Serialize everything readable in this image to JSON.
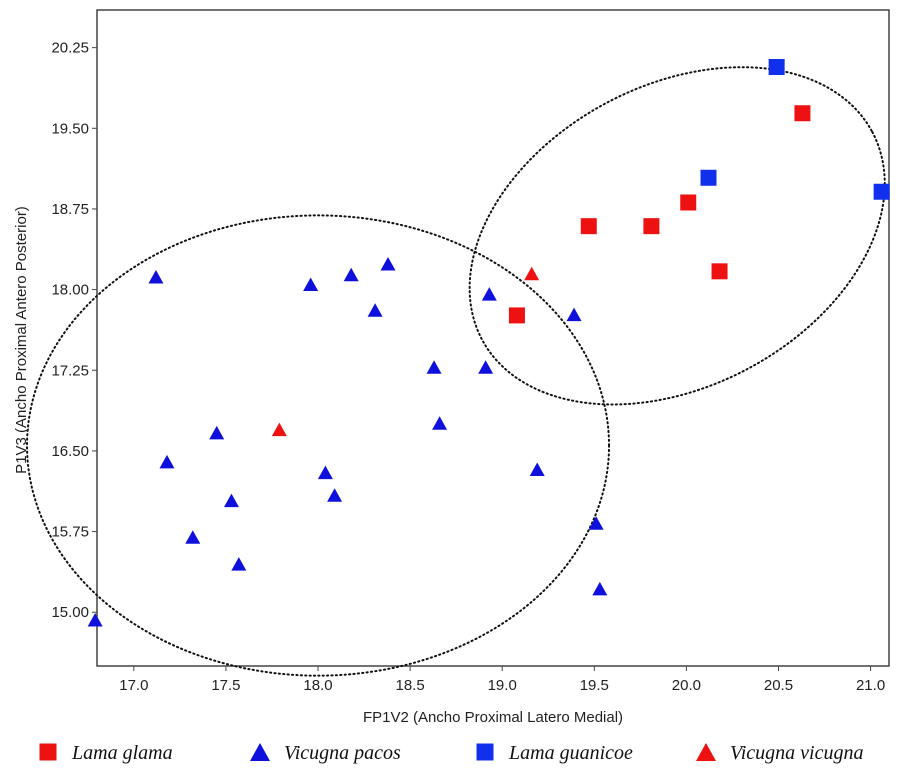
{
  "chart_data": {
    "type": "scatter",
    "xlabel": "FP1V2 (Ancho Proximal Latero Medial)",
    "ylabel": "P1V3 (Ancho Proximal Antero Posterior)",
    "xlim": [
      16.8,
      21.1
    ],
    "ylim": [
      14.5,
      20.6
    ],
    "x_ticks": [
      "17.0",
      "17.5",
      "18.0",
      "18.5",
      "19.0",
      "19.5",
      "20.0",
      "20.5",
      "21.0"
    ],
    "y_ticks": [
      "15.00",
      "15.75",
      "16.50",
      "17.25",
      "18.00",
      "18.75",
      "19.50",
      "20.25"
    ],
    "grid": false,
    "legend_position": "bottom",
    "series": [
      {
        "name": "Lama glama",
        "marker": "square",
        "color": "#ee1111",
        "points": [
          {
            "x": 20.63,
            "y": 19.64
          },
          {
            "x": 19.47,
            "y": 18.59
          },
          {
            "x": 19.81,
            "y": 18.59
          },
          {
            "x": 20.01,
            "y": 18.81
          },
          {
            "x": 20.18,
            "y": 18.17
          },
          {
            "x": 19.08,
            "y": 17.76
          }
        ]
      },
      {
        "name": "Vicugna pacos",
        "marker": "triangle",
        "color": "#1010dd",
        "points": [
          {
            "x": 17.12,
            "y": 18.12
          },
          {
            "x": 17.96,
            "y": 18.05
          },
          {
            "x": 18.18,
            "y": 18.14
          },
          {
            "x": 18.38,
            "y": 18.24
          },
          {
            "x": 18.31,
            "y": 17.81
          },
          {
            "x": 18.93,
            "y": 17.96
          },
          {
            "x": 19.39,
            "y": 17.77
          },
          {
            "x": 18.63,
            "y": 17.28
          },
          {
            "x": 18.91,
            "y": 17.28
          },
          {
            "x": 18.66,
            "y": 16.76
          },
          {
            "x": 17.45,
            "y": 16.67
          },
          {
            "x": 17.18,
            "y": 16.4
          },
          {
            "x": 18.04,
            "y": 16.3
          },
          {
            "x": 18.09,
            "y": 16.09
          },
          {
            "x": 17.53,
            "y": 16.04
          },
          {
            "x": 19.19,
            "y": 16.33
          },
          {
            "x": 19.51,
            "y": 15.83
          },
          {
            "x": 17.32,
            "y": 15.7
          },
          {
            "x": 17.57,
            "y": 15.45
          },
          {
            "x": 19.53,
            "y": 15.22
          },
          {
            "x": 16.79,
            "y": 14.93
          }
        ]
      },
      {
        "name": "Lama guanicoe",
        "marker": "square",
        "color": "#1030ee",
        "points": [
          {
            "x": 20.49,
            "y": 20.07
          },
          {
            "x": 20.12,
            "y": 19.04
          },
          {
            "x": 21.06,
            "y": 18.91
          }
        ]
      },
      {
        "name": "Vicugna vicugna",
        "marker": "triangle",
        "color": "#ee1111",
        "points": [
          {
            "x": 17.79,
            "y": 16.7
          },
          {
            "x": 19.16,
            "y": 18.15
          }
        ]
      }
    ],
    "ellipses": [
      {
        "cx": 18.0,
        "cy": 16.55,
        "rx": 1.58,
        "ry": 2.14,
        "style": "dotted"
      },
      {
        "cx": 19.95,
        "cy": 18.5,
        "rx": 1.2,
        "ry": 1.4,
        "angle_deg": 28,
        "style": "dotted"
      }
    ]
  }
}
